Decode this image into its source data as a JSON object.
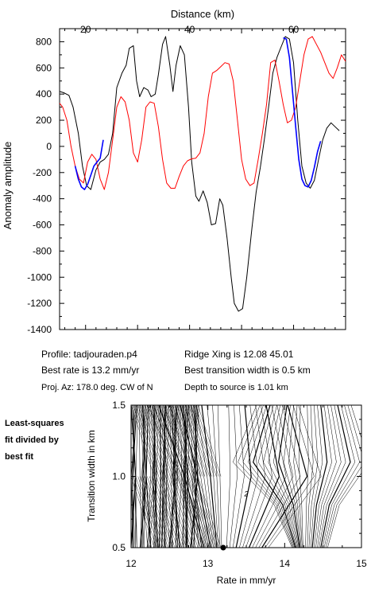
{
  "chart_data": [
    {
      "type": "line",
      "xlabel": "Distance (km)",
      "ylabel": "Anomaly amplitude",
      "xlim": [
        15,
        70
      ],
      "ylim": [
        -1400,
        900
      ],
      "x_ticks": [
        "20",
        "40",
        "60"
      ],
      "y_ticks": [
        "800",
        "600",
        "400",
        "200",
        "0",
        "-200",
        "-400",
        "-600",
        "-800",
        "-1000",
        "-1200",
        "-1400"
      ],
      "colors": {
        "observed": "#000000",
        "model": "#ff0000",
        "fit_window": "#0000ff"
      },
      "series": [
        {
          "color": "#000000",
          "x": [
            15.0,
            15.8,
            16.8,
            17.6,
            18.6,
            19.4,
            20.2,
            21.0,
            22.0,
            22.8,
            23.6,
            24.4,
            25.2,
            26.0,
            27.0,
            27.8,
            28.4,
            29.2,
            29.8,
            30.4,
            31.2,
            32.0,
            32.6,
            33.4,
            34.0,
            34.8,
            35.4,
            36.2,
            36.8,
            37.4,
            38.2,
            39.0,
            39.8,
            40.4,
            41.2,
            41.8,
            42.6,
            43.4,
            44.2,
            45.0,
            45.8,
            46.4,
            47.2,
            48.0,
            48.6,
            49.4,
            50.2,
            51.0,
            52.0,
            52.8,
            53.6,
            54.4,
            55.2,
            56.0,
            56.8,
            57.6,
            58.4,
            59.2,
            60.0,
            60.8,
            61.6,
            62.4,
            63.2,
            64.0,
            64.8,
            65.6,
            66.4,
            67.2,
            68.0,
            68.8
          ],
          "y": [
            420,
            410,
            390,
            300,
            100,
            -150,
            -300,
            -330,
            -180,
            -120,
            -100,
            -60,
            100,
            450,
            560,
            620,
            750,
            770,
            500,
            380,
            450,
            430,
            380,
            400,
            550,
            780,
            840,
            620,
            420,
            620,
            770,
            700,
            300,
            -120,
            -380,
            -420,
            -340,
            -430,
            -600,
            -590,
            -400,
            -450,
            -700,
            -1000,
            -1200,
            -1260,
            -1240,
            -1000,
            -620,
            -350,
            -160,
            60,
            300,
            560,
            680,
            760,
            840,
            820,
            640,
            200,
            -150,
            -280,
            -320,
            -260,
            -100,
            50,
            140,
            180,
            150,
            120
          ]
        },
        {
          "color": "#ff0000",
          "x": [
            15.0,
            15.6,
            16.4,
            17.2,
            18.0,
            18.8,
            19.6,
            20.4,
            21.2,
            22.0,
            22.8,
            23.6,
            24.4,
            25.2,
            26.0,
            26.8,
            27.6,
            28.4,
            29.2,
            30.0,
            30.8,
            31.6,
            32.4,
            33.2,
            34.0,
            34.8,
            35.6,
            36.4,
            37.2,
            38.0,
            38.8,
            39.6,
            40.4,
            41.2,
            42.0,
            42.8,
            43.6,
            44.4,
            45.2,
            46.0,
            46.8,
            47.6,
            48.4,
            49.2,
            50.0,
            50.8,
            51.6,
            52.4,
            53.2,
            54.0,
            54.8,
            55.6,
            56.4,
            57.2,
            58.0,
            58.8,
            59.6,
            60.4,
            61.2,
            62.0,
            62.8,
            63.6,
            64.4,
            65.2,
            66.0,
            66.8,
            67.6,
            68.4,
            69.2,
            70.0
          ],
          "y": [
            330,
            300,
            200,
            0,
            -150,
            -250,
            -280,
            -120,
            -60,
            -100,
            -250,
            -330,
            -200,
            50,
            300,
            380,
            340,
            200,
            -50,
            -120,
            50,
            300,
            340,
            330,
            150,
            -100,
            -280,
            -320,
            -320,
            -230,
            -150,
            -110,
            -95,
            -90,
            -50,
            100,
            380,
            560,
            580,
            610,
            640,
            630,
            500,
            200,
            -100,
            -250,
            -300,
            -280,
            -100,
            100,
            320,
            640,
            660,
            500,
            320,
            180,
            200,
            300,
            500,
            700,
            820,
            840,
            780,
            720,
            640,
            560,
            520,
            600,
            700,
            650
          ]
        },
        {
          "color": "#0000ff",
          "x": [
            18.0,
            18.6,
            19.2,
            19.8,
            20.4,
            21.0,
            21.6,
            22.2,
            22.8,
            23.4
          ],
          "y": [
            -150,
            -250,
            -310,
            -330,
            -290,
            -220,
            -150,
            -120,
            -90,
            50
          ]
        },
        {
          "color": "#0000ff",
          "x": [
            58.0,
            58.6,
            59.2,
            59.8,
            60.4,
            61.0,
            61.6,
            62.2,
            62.8,
            63.4,
            64.0,
            64.6,
            65.2
          ],
          "y": [
            830,
            820,
            680,
            420,
            150,
            -100,
            -250,
            -300,
            -310,
            -260,
            -160,
            -40,
            40
          ]
        }
      ]
    },
    {
      "type": "contour",
      "xlabel": "Rate in mm/yr",
      "ylabel": "Transition width in km",
      "xlim": [
        12,
        15
      ],
      "ylim": [
        0.5,
        1.5
      ],
      "x_ticks": [
        "12",
        "13",
        "14",
        "15"
      ],
      "y_ticks": [
        "1.5",
        "1.0",
        "0.5"
      ],
      "contour_label": "2",
      "best_fit": {
        "rate": 13.2,
        "width": 0.5
      }
    }
  ],
  "info": {
    "profile": "Profile: tadjouraden.p4",
    "ridge": "Ridge Xing is 12.08 45.01",
    "rate": "Best rate is 13.2 mm/yr",
    "width": "Best transition width is 0.5 km",
    "az": "Proj. Az: 178.0 deg. CW of N",
    "depth": "Depth to source is    1.01 km"
  },
  "side_note": [
    "Least-squares",
    "fit divided by",
    "best fit"
  ]
}
